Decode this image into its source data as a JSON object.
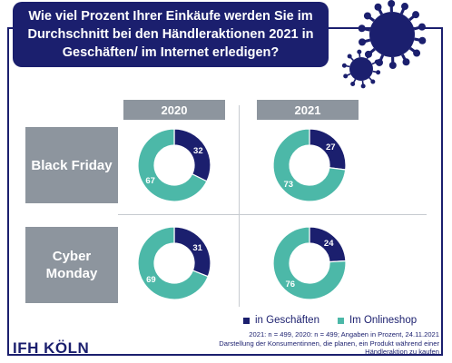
{
  "title": "Wie viel Prozent Ihrer Einkäufe werden Sie im Durchschnitt bei den Händleraktionen 2021 in Geschäften/ im Internet erledigen?",
  "columns": [
    "2020",
    "2021"
  ],
  "rows": [
    "Black Friday",
    "Cyber Monday"
  ],
  "legend": {
    "store": "in Geschäften",
    "online": "Im Onlineshop"
  },
  "footnote": {
    "line1": "2021: n = 499,  2020: n = 499; Angaben in Prozent, 24.11.2021",
    "line2": "Darstellung der Konsumentinnen, die planen, ein Produkt während einer",
    "line3": "Händleraktion zu kaufen"
  },
  "logo": "IFH KÖLN",
  "colors": {
    "store": "#1b1f6e",
    "online": "#4cb8a8",
    "header_gray": "#8d959e",
    "navy": "#1b1f6e"
  },
  "chart_data": [
    {
      "type": "pie",
      "row": "Black Friday",
      "column": "2020",
      "series": [
        {
          "name": "in Geschäften",
          "value": 32
        },
        {
          "name": "Im Onlineshop",
          "value": 67
        }
      ]
    },
    {
      "type": "pie",
      "row": "Black Friday",
      "column": "2021",
      "series": [
        {
          "name": "in Geschäften",
          "value": 27
        },
        {
          "name": "Im Onlineshop",
          "value": 73
        }
      ]
    },
    {
      "type": "pie",
      "row": "Cyber Monday",
      "column": "2020",
      "series": [
        {
          "name": "in Geschäften",
          "value": 31
        },
        {
          "name": "Im Onlineshop",
          "value": 69
        }
      ]
    },
    {
      "type": "pie",
      "row": "Cyber Monday",
      "column": "2021",
      "series": [
        {
          "name": "in Geschäften",
          "value": 24
        },
        {
          "name": "Im Onlineshop",
          "value": 76
        }
      ]
    }
  ]
}
